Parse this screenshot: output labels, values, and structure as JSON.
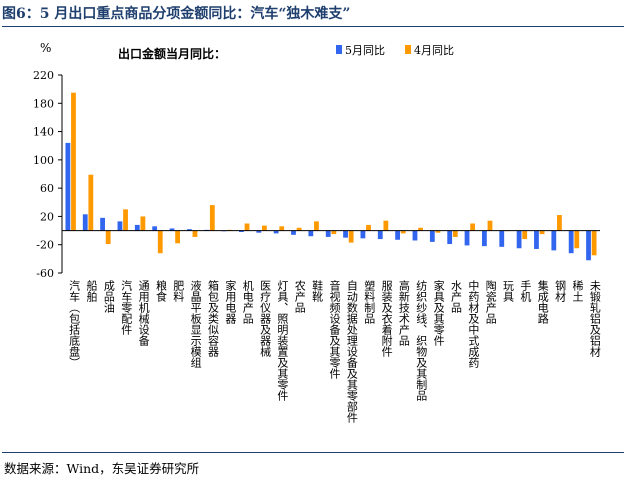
{
  "figure_title": "图6：5 月出口重点商品分项金额同比：汽车“独木难支”",
  "source_note": "数据来源：Wind，东吴证券研究所",
  "chart_data": {
    "type": "bar",
    "title": "出口金额当月同比：",
    "ylabel": "%",
    "xlabel": "",
    "ylim": [
      -60,
      220
    ],
    "yticks": [
      -60,
      -20,
      20,
      60,
      100,
      140,
      180,
      220
    ],
    "grid": false,
    "legend_position": "top-right",
    "categories": [
      "汽车（包括底盘）",
      "船舶",
      "成品油",
      "汽车零配件",
      "通用机械设备",
      "粮食",
      "肥料",
      "液晶平板显示模组",
      "箱包及类似容器",
      "家用电器",
      "机电产品",
      "医疗仪器及器械",
      "灯具、照明装置及其零件",
      "农产品",
      "鞋靴",
      "音视频设备及其零件",
      "自动数据处理设备及其零部件",
      "塑料制品",
      "服装及衣着附件",
      "高新技术产品",
      "纺织纱线、织物及其制品",
      "家具及其零件",
      "水产品",
      "中药材及中式成药",
      "陶瓷产品",
      "玩具",
      "手机",
      "集成电路",
      "钢材",
      "稀土",
      "未锻轧铝及铝材"
    ],
    "series": [
      {
        "name": "5月同比",
        "color": "#3366ee",
        "values": [
          124,
          23,
          18,
          13,
          8,
          6,
          3,
          2,
          1,
          -1,
          -2,
          -3,
          -4,
          -6,
          -8,
          -9,
          -10,
          -11,
          -12,
          -13,
          -14,
          -16,
          -19,
          -21,
          -22,
          -23,
          -25,
          -26,
          -28,
          -32,
          -42
        ]
      },
      {
        "name": "4月同比",
        "color": "#ff9900",
        "values": [
          195,
          79,
          -19,
          30,
          20,
          -32,
          -18,
          -9,
          36,
          1,
          10,
          7,
          6,
          4,
          13,
          -5,
          -17,
          8,
          14,
          -4,
          4,
          -3,
          -9,
          10,
          14,
          0,
          -12,
          -5,
          22,
          -25,
          -35
        ]
      }
    ]
  }
}
